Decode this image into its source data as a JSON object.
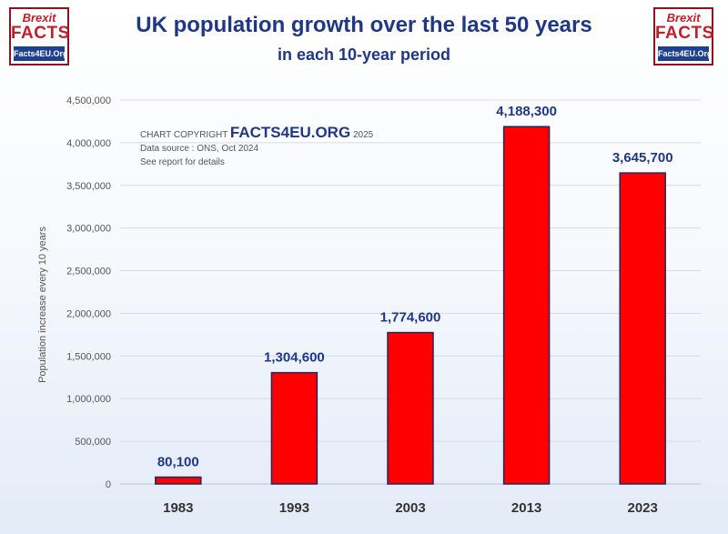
{
  "logos": {
    "line1": "Brexit",
    "line2": "FACTS",
    "line3": "Facts4EU.Org"
  },
  "copyright": {
    "prefix": "CHART COPYRIGHT",
    "brand": "FACTS4EU.ORG",
    "year": "2025"
  },
  "notes": {
    "source": "Data source : ONS, Oct 2024",
    "report": "See report for details"
  },
  "colors": {
    "bar": "#ff0000",
    "bar_outline": "#1f2a5c",
    "title": "#1f3785",
    "data_label": "#1f3785"
  },
  "chart_data": {
    "type": "bar",
    "title": "UK population growth over the last 50 years",
    "subtitle": "in each 10-year period",
    "xlabel": "",
    "ylabel": "Population increase every 10 years",
    "categories": [
      "1983",
      "1993",
      "2003",
      "2013",
      "2023"
    ],
    "values": [
      80100,
      1304600,
      1774600,
      4188300,
      3645700
    ],
    "value_labels": [
      "80,100",
      "1,304,600",
      "1,774,600",
      "4,188,300",
      "3,645,700"
    ],
    "ylim": [
      0,
      4500000
    ],
    "yticks": [
      0,
      500000,
      1000000,
      1500000,
      2000000,
      2500000,
      3000000,
      3500000,
      4000000,
      4500000
    ],
    "ytick_labels": [
      "0",
      "500,000",
      "1,000,000",
      "1,500,000",
      "2,000,000",
      "2,500,000",
      "3,000,000",
      "3,500,000",
      "4,000,000",
      "4,500,000"
    ],
    "grid": true
  }
}
